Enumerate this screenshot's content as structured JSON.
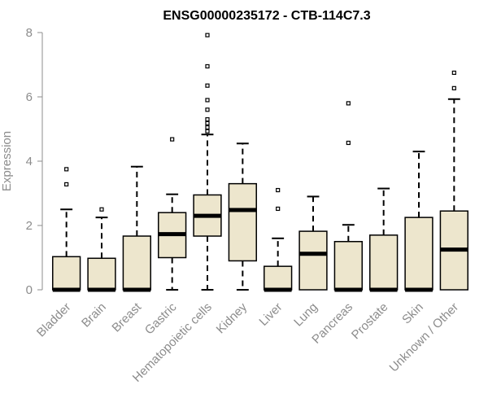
{
  "chart_data": {
    "type": "box",
    "title": "ENSG00000235172 - CTB-114C7.3",
    "xlabel": "",
    "ylabel": "Expression",
    "ylim": [
      0,
      8
    ],
    "yticks": [
      0,
      2,
      4,
      6,
      8
    ],
    "box_fill": "#ede6cd",
    "categories": [
      "Bladder",
      "Brain",
      "Breast",
      "Gastric",
      "Hematopoietic cells",
      "Kidney",
      "Liver",
      "Lung",
      "Pancreas",
      "Prostate",
      "Skin",
      "Unknown / Other"
    ],
    "boxes": [
      {
        "category": "Bladder",
        "min": 0,
        "q1": 0,
        "median": 0,
        "q3": 1.03,
        "max": 2.5,
        "outliers": [
          3.28,
          3.75
        ]
      },
      {
        "category": "Brain",
        "min": 0,
        "q1": 0,
        "median": 0,
        "q3": 0.98,
        "max": 2.25,
        "outliers": [
          2.5
        ]
      },
      {
        "category": "Breast",
        "min": 0,
        "q1": 0,
        "median": 0,
        "q3": 1.67,
        "max": 3.83,
        "outliers": []
      },
      {
        "category": "Gastric",
        "min": 0,
        "q1": 1.0,
        "median": 1.73,
        "q3": 2.4,
        "max": 2.97,
        "outliers": [
          4.68
        ]
      },
      {
        "category": "Hematopoietic cells",
        "min": 0,
        "q1": 1.67,
        "median": 2.3,
        "q3": 2.95,
        "max": 4.83,
        "outliers": [
          4.93,
          5.05,
          5.18,
          5.3,
          5.6,
          5.9,
          6.35,
          6.95,
          7.92
        ]
      },
      {
        "category": "Kidney",
        "min": 0,
        "q1": 0.9,
        "median": 2.48,
        "q3": 3.3,
        "max": 4.55,
        "outliers": []
      },
      {
        "category": "Liver",
        "min": 0,
        "q1": 0,
        "median": 0,
        "q3": 0.73,
        "max": 1.6,
        "outliers": [
          2.52,
          3.1
        ]
      },
      {
        "category": "Lung",
        "min": 0,
        "q1": 0,
        "median": 1.12,
        "q3": 1.82,
        "max": 2.9,
        "outliers": []
      },
      {
        "category": "Pancreas",
        "min": 0,
        "q1": 0,
        "median": 0,
        "q3": 1.5,
        "max": 2.02,
        "outliers": [
          4.57,
          5.8
        ]
      },
      {
        "category": "Prostate",
        "min": 0,
        "q1": 0,
        "median": 0,
        "q3": 1.7,
        "max": 3.15,
        "outliers": []
      },
      {
        "category": "Skin",
        "min": 0,
        "q1": 0,
        "median": 0,
        "q3": 2.25,
        "max": 4.3,
        "outliers": []
      },
      {
        "category": "Unknown / Other",
        "min": 0,
        "q1": 0,
        "median": 1.25,
        "q3": 2.45,
        "max": 5.93,
        "outliers": [
          6.27,
          6.75
        ]
      }
    ]
  }
}
